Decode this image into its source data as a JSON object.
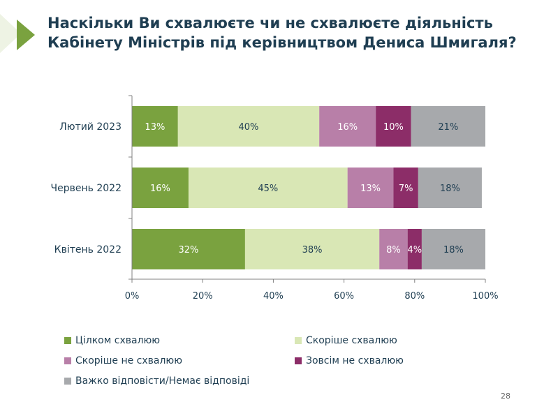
{
  "title": {
    "line1": "Наскільки Ви схвалюєте чи не схвалюєте діяльність",
    "line2": "Кабінету Міністрів під керівництвом Дениса Шмигаля?"
  },
  "page_number": "28",
  "colors": {
    "s1": "#7aa23f",
    "s2": "#d9e7b5",
    "s3": "#b87fa8",
    "s4": "#8c2d68",
    "s5": "#a7a9ac",
    "accent": "#7aa23f"
  },
  "chart_data": {
    "type": "bar",
    "orientation": "horizontal",
    "stacked": true,
    "categories": [
      "Лютий 2023",
      "Червень 2022",
      "Квітень 2022"
    ],
    "series": [
      {
        "name": "Цілком схвалюю",
        "values": [
          13,
          16,
          32
        ],
        "labels": [
          "13%",
          "16%",
          "32%"
        ]
      },
      {
        "name": "Скоріше схвалюю",
        "values": [
          40,
          45,
          38
        ],
        "labels": [
          "40%",
          "45%",
          "38%"
        ]
      },
      {
        "name": "Скоріше не схвалюю",
        "values": [
          16,
          13,
          8
        ],
        "labels": [
          "16%",
          "13%",
          "8%"
        ]
      },
      {
        "name": "Зовсім не схвалюю",
        "values": [
          10,
          7,
          4
        ],
        "labels": [
          "10%",
          "7%",
          "4%"
        ]
      },
      {
        "name": "Важко відповісти/Немає відповіді",
        "values": [
          21,
          18,
          18
        ],
        "labels": [
          "21%",
          "18%",
          "18%"
        ]
      }
    ],
    "xlim": [
      0,
      100
    ],
    "x_ticks": [
      "0%",
      "20%",
      "40%",
      "60%",
      "80%",
      "100%"
    ],
    "legend_position": "bottom",
    "grid": false
  }
}
